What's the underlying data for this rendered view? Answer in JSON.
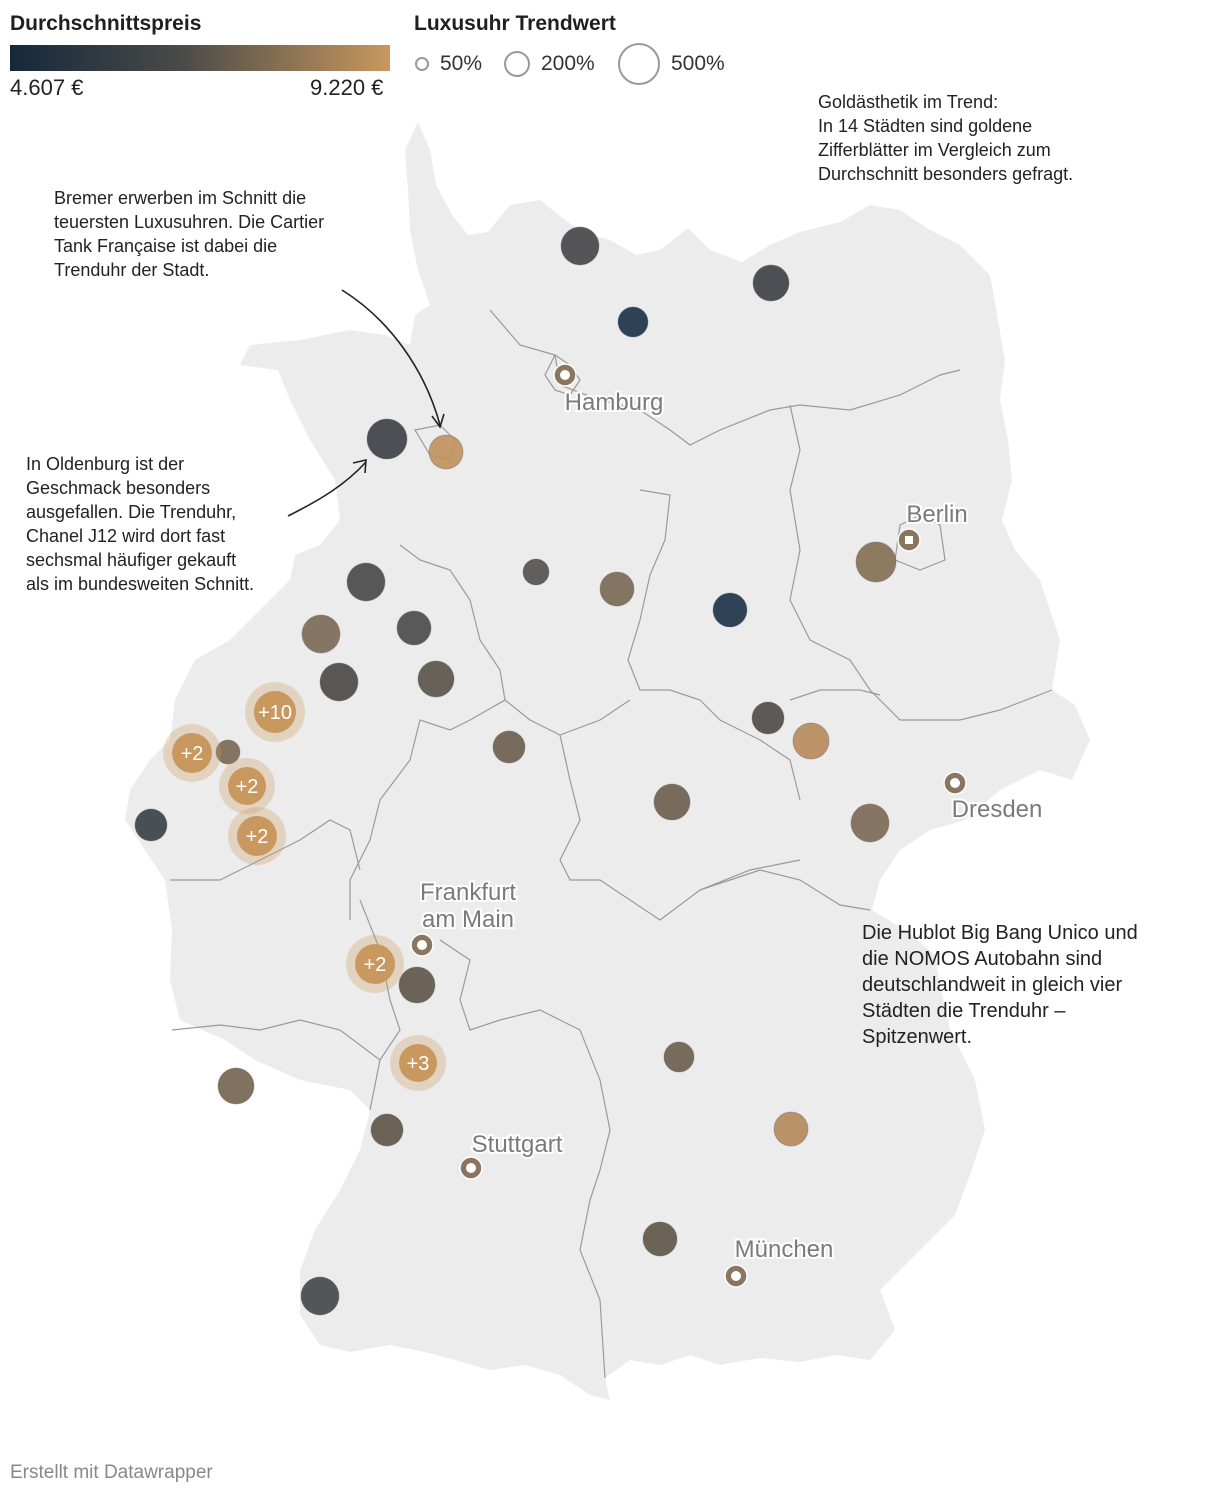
{
  "legend": {
    "color_title": "Durchschnittspreis",
    "color_min_label": "4.607 €",
    "color_max_label": "9.220 €",
    "color_min": "#15293b",
    "color_mid": "#4a4a48",
    "color_max": "#c9985e",
    "size_title": "Luxusuhr Trendwert",
    "size_entries": [
      {
        "label": "50%"
      },
      {
        "label": "200%"
      },
      {
        "label": "500%"
      }
    ]
  },
  "map": {
    "land_color": "#ececec",
    "border_color": "#9a9a9a",
    "cities": [
      {
        "name": "Hamburg"
      },
      {
        "name": "Berlin"
      },
      {
        "name": "Dresden"
      },
      {
        "name": "Frankfurt\nam Main"
      },
      {
        "name": "Stuttgart"
      },
      {
        "name": "München"
      }
    ],
    "clusters": [
      "+10",
      "+2",
      "+2",
      "+2",
      "+2",
      "+3"
    ]
  },
  "annotations": {
    "bremen": "Bremer erwerben im Schnitt die\nteuersten Luxusuhren. Die Cartier\nTank Française ist dabei die\nTrenduhr der Stadt.",
    "oldenburg": "In Oldenburg ist der\nGeschmack besonders\nausgefallen. Die Trenduhr,\nChanel J12 wird dort fast\nsechsmal häufiger gekauft\nals im bundesweiten Schnitt.",
    "gold": "Goldästhetik im Trend:\nIn 14 Städten sind goldene\nZifferblätter im Vergleich zum\nDurchschnitt besonders gefragt.",
    "hublot": "Die Hublot Big Bang Unico und\ndie NOMOS Autobahn sind\ndeutschlandweit in gleich vier\nStädten die Trenduhr –\nSpitzenwert."
  },
  "footer": "Erstellt mit Datawrapper"
}
